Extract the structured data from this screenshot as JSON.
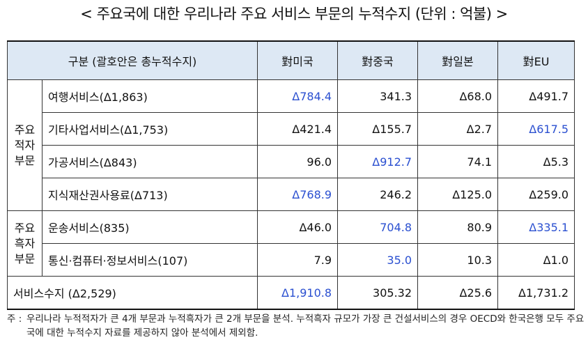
{
  "title": "< 주요국에 대한 우리나라 주요 서비스 부문의 누적수지 (단위 : 억불) >",
  "table": {
    "headers": [
      "구분 (괄호안은 총누적수지)",
      "對미국",
      "對중국",
      "對일본",
      "對EU"
    ],
    "groups": [
      {
        "label": "주요 적자 부문",
        "rows": [
          {
            "item": "여행서비스(Δ1,863)",
            "values": [
              "Δ784.4",
              "341.3",
              "Δ68.0",
              "Δ491.7"
            ],
            "blue": [
              true,
              false,
              false,
              false
            ]
          },
          {
            "item": "기타사업서비스(Δ1,753)",
            "values": [
              "Δ421.4",
              "Δ155.7",
              "Δ2.7",
              "Δ617.5"
            ],
            "blue": [
              false,
              false,
              false,
              true
            ]
          },
          {
            "item": "가공서비스(Δ843)",
            "values": [
              "96.0",
              "Δ912.7",
              "74.1",
              "Δ5.3"
            ],
            "blue": [
              false,
              true,
              false,
              false
            ]
          },
          {
            "item": "지식재산권사용료(Δ713)",
            "values": [
              "Δ768.9",
              "246.2",
              "Δ125.0",
              "Δ259.0"
            ],
            "blue": [
              true,
              false,
              false,
              false
            ]
          }
        ]
      },
      {
        "label": "주요 흑자 부문",
        "rows": [
          {
            "item": "운송서비스(835)",
            "values": [
              "Δ46.0",
              "704.8",
              "80.9",
              "Δ335.1"
            ],
            "blue": [
              false,
              true,
              false,
              true
            ]
          },
          {
            "item": "통신·컴퓨터·정보서비스(107)",
            "values": [
              "7.9",
              "35.0",
              "10.3",
              "Δ1.0"
            ],
            "blue": [
              false,
              true,
              false,
              false
            ]
          }
        ]
      }
    ],
    "total": {
      "item": "서비스수지 (Δ2,529)",
      "values": [
        "Δ1,910.8",
        "305.32",
        "Δ25.6",
        "Δ1,731.2"
      ],
      "blue": [
        true,
        false,
        false,
        false
      ]
    }
  },
  "note": {
    "label": "주 :",
    "text": "우리나라 누적적자가 큰 4개 부문과 누적흑자가 큰 2개 부문을 분석. 누적흑자 규모가 가장 큰 건설서비스의 경우 OECD와 한국은행 모두 주요국에 대한 누적수지 자료를 제공하지 않아 분석에서 제외함."
  }
}
